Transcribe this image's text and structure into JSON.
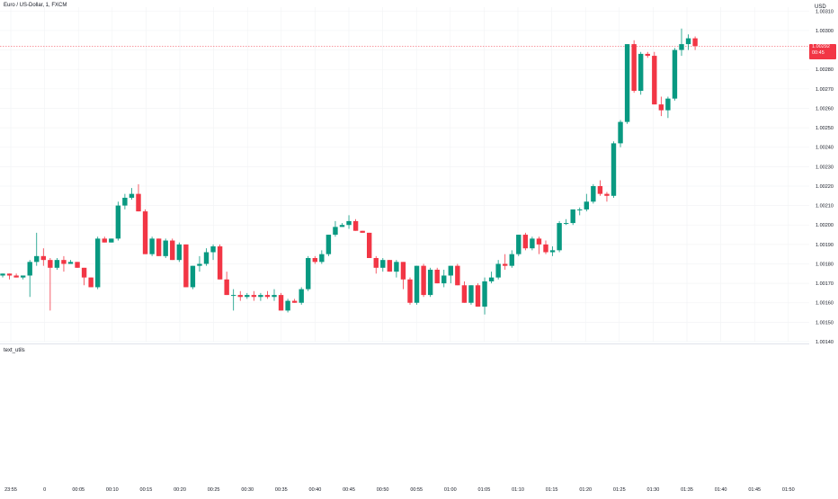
{
  "header": {
    "symbol_title": "Euro / US-Dollar, 1, FXCM",
    "currency": "USD"
  },
  "indicator": {
    "label": "text_utils"
  },
  "last_price": {
    "value": "1.00292",
    "countdown": "00:45",
    "color": "#f23645"
  },
  "colors": {
    "up": "#089981",
    "down": "#f23645",
    "grid": "#f3f4f6",
    "text": "#131722"
  },
  "chart_data": {
    "type": "candlestick",
    "symbol": "Euro / US-Dollar, 1, FXCM",
    "currency": "USD",
    "ylim": [
      1.0014,
      1.00312
    ],
    "y_ticks": [
      "1.00140",
      "1.00150",
      "1.00160",
      "1.00170",
      "1.00180",
      "1.00190",
      "1.00200",
      "1.00210",
      "1.00220",
      "1.00230",
      "1.00240",
      "1.00250",
      "1.00260",
      "1.00270",
      "1.00280",
      "1.00290",
      "1.00300",
      "1.00310"
    ],
    "x_ticks": [
      "23:55",
      "0",
      "00:05",
      "00:10",
      "00:15",
      "00:20",
      "00:25",
      "00:30",
      "00:35",
      "00:40",
      "00:45",
      "00:50",
      "00:55",
      "01:00",
      "01:05",
      "01:10",
      "01:15",
      "01:20",
      "01:25",
      "01:30",
      "01:35",
      "01:40",
      "01:45",
      "01:50"
    ],
    "candles": [
      {
        "o": 1.00174,
        "h": 1.00175,
        "l": 1.00173,
        "c": 1.00175
      },
      {
        "o": 1.00175,
        "h": 1.00175,
        "l": 1.00172,
        "c": 1.00174
      },
      {
        "o": 1.00174,
        "h": 1.00175,
        "l": 1.00173,
        "c": 1.00173
      },
      {
        "o": 1.00173,
        "h": 1.00174,
        "l": 1.00172,
        "c": 1.00174
      },
      {
        "o": 1.00174,
        "h": 1.00182,
        "l": 1.00163,
        "c": 1.00181
      },
      {
        "o": 1.00181,
        "h": 1.00196,
        "l": 1.00179,
        "c": 1.00184
      },
      {
        "o": 1.00184,
        "h": 1.00188,
        "l": 1.00179,
        "c": 1.00182
      },
      {
        "o": 1.00182,
        "h": 1.00183,
        "l": 1.00156,
        "c": 1.00178
      },
      {
        "o": 1.00178,
        "h": 1.00183,
        "l": 1.00177,
        "c": 1.00182
      },
      {
        "o": 1.00182,
        "h": 1.00184,
        "l": 1.00176,
        "c": 1.0018
      },
      {
        "o": 1.0018,
        "h": 1.00182,
        "l": 1.0018,
        "c": 1.00181
      },
      {
        "o": 1.00181,
        "h": 1.00181,
        "l": 1.00178,
        "c": 1.00178
      },
      {
        "o": 1.00178,
        "h": 1.00178,
        "l": 1.00169,
        "c": 1.00173
      },
      {
        "o": 1.00173,
        "h": 1.00173,
        "l": 1.00168,
        "c": 1.00168
      },
      {
        "o": 1.00168,
        "h": 1.00194,
        "l": 1.00167,
        "c": 1.00193
      },
      {
        "o": 1.00193,
        "h": 1.00194,
        "l": 1.00191,
        "c": 1.00191
      },
      {
        "o": 1.00191,
        "h": 1.00193,
        "l": 1.00191,
        "c": 1.00193
      },
      {
        "o": 1.00193,
        "h": 1.00212,
        "l": 1.00192,
        "c": 1.0021
      },
      {
        "o": 1.0021,
        "h": 1.00216,
        "l": 1.00208,
        "c": 1.00214
      },
      {
        "o": 1.00214,
        "h": 1.00219,
        "l": 1.00213,
        "c": 1.00216
      },
      {
        "o": 1.00216,
        "h": 1.00221,
        "l": 1.00207,
        "c": 1.00207
      },
      {
        "o": 1.00207,
        "h": 1.00208,
        "l": 1.00185,
        "c": 1.00185
      },
      {
        "o": 1.00185,
        "h": 1.00194,
        "l": 1.00184,
        "c": 1.00193
      },
      {
        "o": 1.00193,
        "h": 1.00193,
        "l": 1.00184,
        "c": 1.00184
      },
      {
        "o": 1.00184,
        "h": 1.00193,
        "l": 1.00183,
        "c": 1.00192
      },
      {
        "o": 1.00192,
        "h": 1.00193,
        "l": 1.00182,
        "c": 1.00182
      },
      {
        "o": 1.00182,
        "h": 1.00191,
        "l": 1.00181,
        "c": 1.0019
      },
      {
        "o": 1.0019,
        "h": 1.0019,
        "l": 1.00168,
        "c": 1.00168
      },
      {
        "o": 1.00168,
        "h": 1.00179,
        "l": 1.00167,
        "c": 1.00179
      },
      {
        "o": 1.00179,
        "h": 1.00184,
        "l": 1.00176,
        "c": 1.0018
      },
      {
        "o": 1.0018,
        "h": 1.00188,
        "l": 1.00179,
        "c": 1.00186
      },
      {
        "o": 1.00186,
        "h": 1.0019,
        "l": 1.00182,
        "c": 1.00189
      },
      {
        "o": 1.00189,
        "h": 1.0019,
        "l": 1.00172,
        "c": 1.00172
      },
      {
        "o": 1.00172,
        "h": 1.00176,
        "l": 1.00164,
        "c": 1.00164
      },
      {
        "o": 1.00164,
        "h": 1.00167,
        "l": 1.00156,
        "c": 1.00164
      },
      {
        "o": 1.00164,
        "h": 1.00166,
        "l": 1.00161,
        "c": 1.00163
      },
      {
        "o": 1.00163,
        "h": 1.00165,
        "l": 1.00162,
        "c": 1.00164
      },
      {
        "o": 1.00164,
        "h": 1.00166,
        "l": 1.00161,
        "c": 1.00163
      },
      {
        "o": 1.00163,
        "h": 1.00165,
        "l": 1.00161,
        "c": 1.00164
      },
      {
        "o": 1.00164,
        "h": 1.00166,
        "l": 1.00162,
        "c": 1.00163
      },
      {
        "o": 1.00163,
        "h": 1.00167,
        "l": 1.00161,
        "c": 1.00164
      },
      {
        "o": 1.00164,
        "h": 1.00165,
        "l": 1.00156,
        "c": 1.00156
      },
      {
        "o": 1.00156,
        "h": 1.00162,
        "l": 1.00155,
        "c": 1.00161
      },
      {
        "o": 1.00161,
        "h": 1.00162,
        "l": 1.0016,
        "c": 1.0016
      },
      {
        "o": 1.0016,
        "h": 1.00168,
        "l": 1.00159,
        "c": 1.00167
      },
      {
        "o": 1.00167,
        "h": 1.00184,
        "l": 1.00166,
        "c": 1.00183
      },
      {
        "o": 1.00183,
        "h": 1.00184,
        "l": 1.0018,
        "c": 1.00181
      },
      {
        "o": 1.00181,
        "h": 1.00187,
        "l": 1.0018,
        "c": 1.00185
      },
      {
        "o": 1.00185,
        "h": 1.00195,
        "l": 1.00184,
        "c": 1.00195
      },
      {
        "o": 1.00195,
        "h": 1.00202,
        "l": 1.00194,
        "c": 1.00199
      },
      {
        "o": 1.00199,
        "h": 1.00201,
        "l": 1.00199,
        "c": 1.002
      },
      {
        "o": 1.002,
        "h": 1.00205,
        "l": 1.00198,
        "c": 1.00202
      },
      {
        "o": 1.00202,
        "h": 1.00203,
        "l": 1.00197,
        "c": 1.00197
      },
      {
        "o": 1.00197,
        "h": 1.00197,
        "l": 1.00196,
        "c": 1.00196
      },
      {
        "o": 1.00196,
        "h": 1.00196,
        "l": 1.00183,
        "c": 1.00183
      },
      {
        "o": 1.00183,
        "h": 1.00184,
        "l": 1.00175,
        "c": 1.00178
      },
      {
        "o": 1.00178,
        "h": 1.00183,
        "l": 1.00176,
        "c": 1.00182
      },
      {
        "o": 1.00182,
        "h": 1.00182,
        "l": 1.00176,
        "c": 1.00176
      },
      {
        "o": 1.00176,
        "h": 1.00182,
        "l": 1.00173,
        "c": 1.00181
      },
      {
        "o": 1.00181,
        "h": 1.00181,
        "l": 1.00167,
        "c": 1.00172
      },
      {
        "o": 1.00172,
        "h": 1.00173,
        "l": 1.00159,
        "c": 1.0016
      },
      {
        "o": 1.0016,
        "h": 1.00179,
        "l": 1.00159,
        "c": 1.00179
      },
      {
        "o": 1.00179,
        "h": 1.0018,
        "l": 1.00163,
        "c": 1.00164
      },
      {
        "o": 1.00164,
        "h": 1.00178,
        "l": 1.00163,
        "c": 1.00177
      },
      {
        "o": 1.00177,
        "h": 1.00178,
        "l": 1.0017,
        "c": 1.0017
      },
      {
        "o": 1.0017,
        "h": 1.00177,
        "l": 1.00168,
        "c": 1.00174
      },
      {
        "o": 1.00174,
        "h": 1.00179,
        "l": 1.0017,
        "c": 1.00179
      },
      {
        "o": 1.00179,
        "h": 1.0018,
        "l": 1.00169,
        "c": 1.00169
      },
      {
        "o": 1.00169,
        "h": 1.00171,
        "l": 1.0016,
        "c": 1.0016
      },
      {
        "o": 1.0016,
        "h": 1.00169,
        "l": 1.00159,
        "c": 1.00169
      },
      {
        "o": 1.00169,
        "h": 1.0017,
        "l": 1.00158,
        "c": 1.00158
      },
      {
        "o": 1.00158,
        "h": 1.00173,
        "l": 1.00154,
        "c": 1.00171
      },
      {
        "o": 1.00171,
        "h": 1.00176,
        "l": 1.0017,
        "c": 1.00173
      },
      {
        "o": 1.00173,
        "h": 1.00182,
        "l": 1.00172,
        "c": 1.0018
      },
      {
        "o": 1.0018,
        "h": 1.00185,
        "l": 1.00177,
        "c": 1.00179
      },
      {
        "o": 1.00179,
        "h": 1.00187,
        "l": 1.00178,
        "c": 1.00185
      },
      {
        "o": 1.00185,
        "h": 1.00195,
        "l": 1.00184,
        "c": 1.00195
      },
      {
        "o": 1.00195,
        "h": 1.00196,
        "l": 1.00187,
        "c": 1.00188
      },
      {
        "o": 1.00188,
        "h": 1.00194,
        "l": 1.00187,
        "c": 1.00193
      },
      {
        "o": 1.00193,
        "h": 1.00194,
        "l": 1.00185,
        "c": 1.0019
      },
      {
        "o": 1.0019,
        "h": 1.00192,
        "l": 1.00185,
        "c": 1.00186
      },
      {
        "o": 1.00186,
        "h": 1.00189,
        "l": 1.00184,
        "c": 1.00187
      },
      {
        "o": 1.00187,
        "h": 1.00202,
        "l": 1.00186,
        "c": 1.00201
      },
      {
        "o": 1.00201,
        "h": 1.00203,
        "l": 1.002,
        "c": 1.00201
      },
      {
        "o": 1.00201,
        "h": 1.00208,
        "l": 1.002,
        "c": 1.00208
      },
      {
        "o": 1.00208,
        "h": 1.00209,
        "l": 1.00205,
        "c": 1.00208
      },
      {
        "o": 1.00208,
        "h": 1.00216,
        "l": 1.00207,
        "c": 1.00212
      },
      {
        "o": 1.00212,
        "h": 1.00221,
        "l": 1.00211,
        "c": 1.0022
      },
      {
        "o": 1.0022,
        "h": 1.00223,
        "l": 1.00215,
        "c": 1.00216
      },
      {
        "o": 1.00216,
        "h": 1.00217,
        "l": 1.00212,
        "c": 1.00215
      },
      {
        "o": 1.00215,
        "h": 1.00243,
        "l": 1.00214,
        "c": 1.00242
      },
      {
        "o": 1.00242,
        "h": 1.00254,
        "l": 1.0024,
        "c": 1.00253
      },
      {
        "o": 1.00253,
        "h": 1.00293,
        "l": 1.00252,
        "c": 1.00293
      },
      {
        "o": 1.00293,
        "h": 1.00295,
        "l": 1.00268,
        "c": 1.00269
      },
      {
        "o": 1.00269,
        "h": 1.00289,
        "l": 1.00267,
        "c": 1.00288
      },
      {
        "o": 1.00288,
        "h": 1.00289,
        "l": 1.00286,
        "c": 1.00287
      },
      {
        "o": 1.00287,
        "h": 1.00289,
        "l": 1.00262,
        "c": 1.00262
      },
      {
        "o": 1.00262,
        "h": 1.00266,
        "l": 1.00256,
        "c": 1.00259
      },
      {
        "o": 1.00259,
        "h": 1.00266,
        "l": 1.00255,
        "c": 1.00265
      },
      {
        "o": 1.00265,
        "h": 1.00291,
        "l": 1.00264,
        "c": 1.0029
      },
      {
        "o": 1.0029,
        "h": 1.00301,
        "l": 1.00287,
        "c": 1.00293
      },
      {
        "o": 1.00293,
        "h": 1.00298,
        "l": 1.0029,
        "c": 1.00296
      },
      {
        "o": 1.00296,
        "h": 1.00297,
        "l": 1.0029,
        "c": 1.00292
      }
    ]
  }
}
